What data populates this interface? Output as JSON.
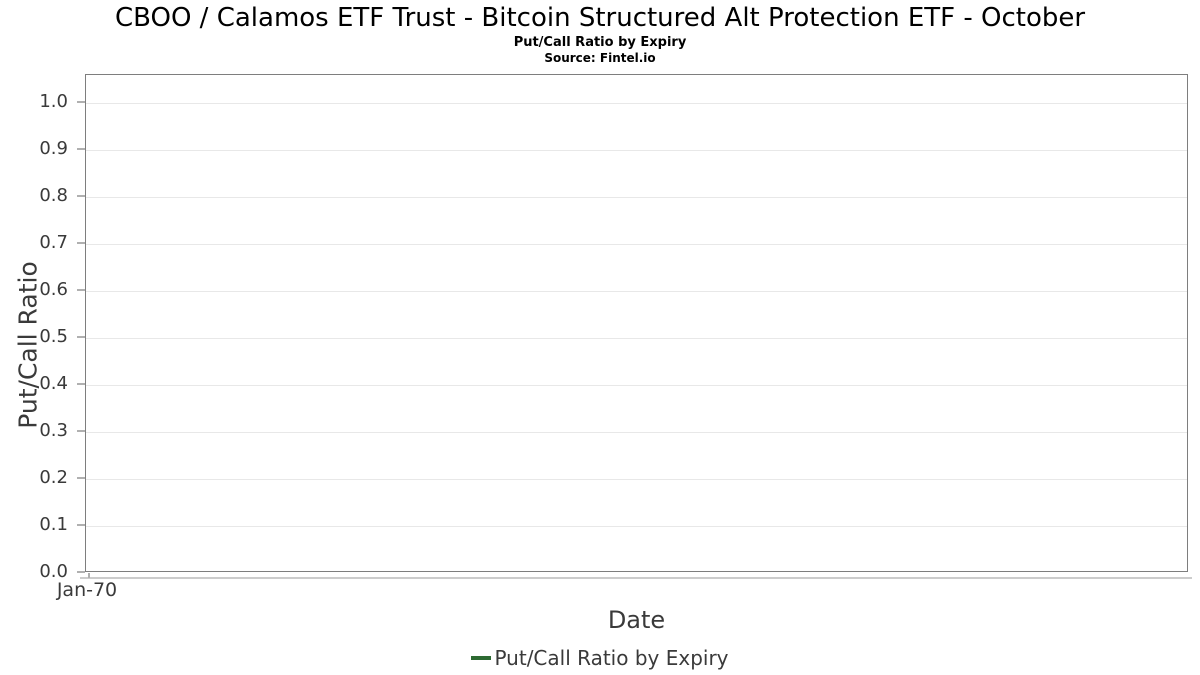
{
  "header": {
    "title": "CBOO / Calamos ETF Trust - Bitcoin Structured Alt Protection ETF - October",
    "subtitle": "Put/Call Ratio by Expiry",
    "source": "Source: Fintel.io"
  },
  "axes": {
    "y_label": "Put/Call Ratio",
    "x_label": "Date",
    "y_ticks": [
      "1.0",
      "0.9",
      "0.8",
      "0.7",
      "0.6",
      "0.5",
      "0.4",
      "0.3",
      "0.2",
      "0.1",
      "0.0"
    ],
    "x_ticks": [
      "Jan-70"
    ]
  },
  "legend": {
    "items": [
      {
        "label": "Put/Call Ratio by Expiry",
        "color": "#2d6a32",
        "marker": "line"
      }
    ]
  },
  "colors": {
    "title_text": "#000000",
    "axis_text": "#3a3a3a",
    "plot_border": "#7e7e7e",
    "gridline": "#e8e8e8",
    "tick_mark": "#b0b0b0",
    "x_axis_line": "#cccccc",
    "legend_line": "#2d6a32",
    "background": "#ffffff"
  },
  "chart_data": {
    "type": "line",
    "title": "CBOO / Calamos ETF Trust - Bitcoin Structured Alt Protection ETF - October",
    "subtitle": "Put/Call Ratio by Expiry",
    "source": "Source: Fintel.io",
    "xlabel": "Date",
    "ylabel": "Put/Call Ratio",
    "ylim": [
      0.0,
      1.06
    ],
    "yticks": [
      0.0,
      0.1,
      0.2,
      0.3,
      0.4,
      0.5,
      0.6,
      0.7,
      0.8,
      0.9,
      1.0
    ],
    "xticklabels": [
      "Jan-70"
    ],
    "grid": "horizontal",
    "legend_position": "bottom-center",
    "x": [],
    "series": [
      {
        "name": "Put/Call Ratio by Expiry",
        "color": "#2d6a32",
        "values": []
      }
    ]
  }
}
